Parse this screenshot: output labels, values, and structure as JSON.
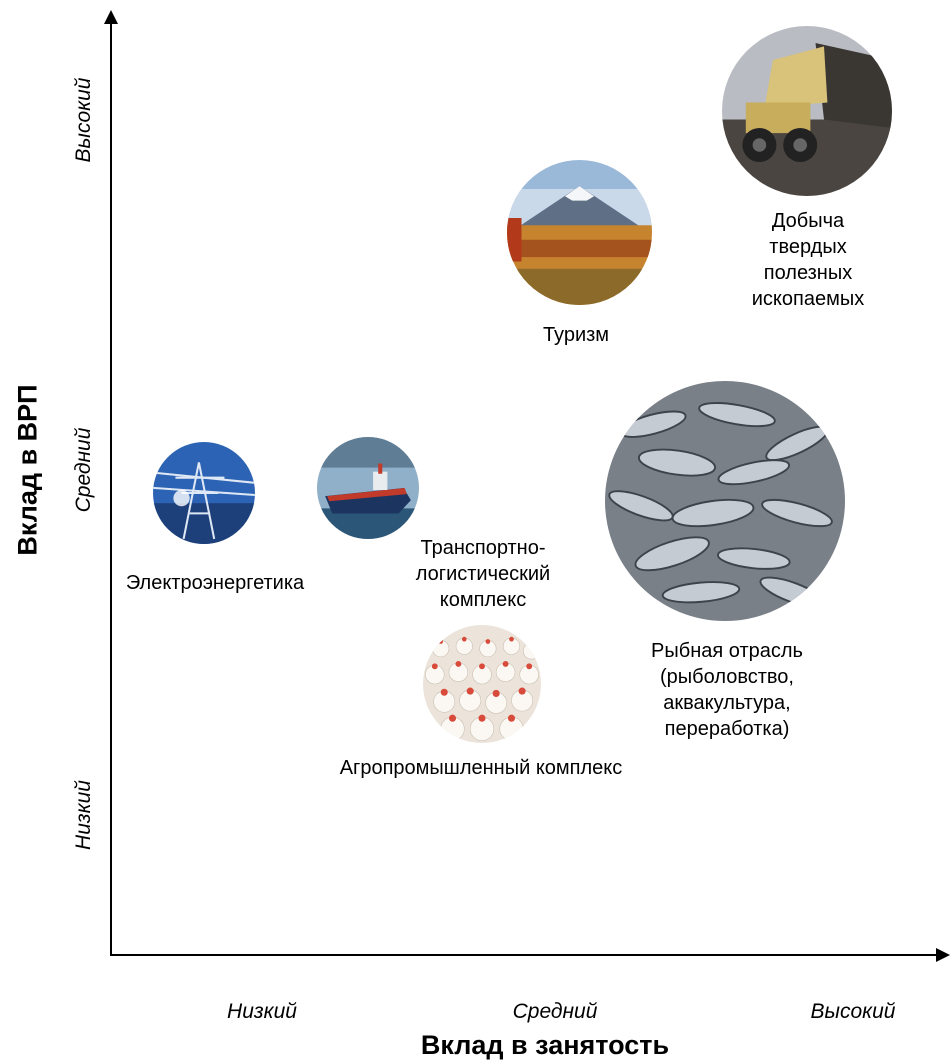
{
  "axes": {
    "y_label": "Вклад в ВРП",
    "x_label": "Вклад в занятость",
    "y_ticks": [
      "Высокий",
      "Средний",
      "Низкий"
    ],
    "x_ticks": [
      "Низкий",
      "Средний",
      "Высокий"
    ],
    "levels": [
      "Низкий",
      "Средний",
      "Высокий"
    ]
  },
  "sectors": [
    {
      "label": "Добыча твердых\nполезных\nископаемых",
      "icon": "mining-truck-icon",
      "employment": "Высокий",
      "grp": "Высокий"
    },
    {
      "label": "Туризм",
      "icon": "volcano-landscape-icon",
      "employment": "Средний",
      "grp": "Высокий"
    },
    {
      "label": "Рыбная отрасль\n(рыболовство,\nаквакультура,\nпереработка)",
      "icon": "fish-catch-icon",
      "employment": "Высокий",
      "grp": "Средний"
    },
    {
      "label": "Электроэнергетика",
      "icon": "power-line-icon",
      "employment": "Низкий",
      "grp": "Средний"
    },
    {
      "label": "Транспортно-\nлогистический\nкомплекс",
      "icon": "cargo-ship-icon",
      "employment": "Низкий",
      "grp": "Средний"
    },
    {
      "label": "Агропромышленный комплекс",
      "icon": "poultry-farm-icon",
      "employment": "Средний",
      "grp": "Низкий"
    }
  ],
  "colors": {
    "axis": "#000000",
    "text": "#000000",
    "background": "#ffffff"
  }
}
